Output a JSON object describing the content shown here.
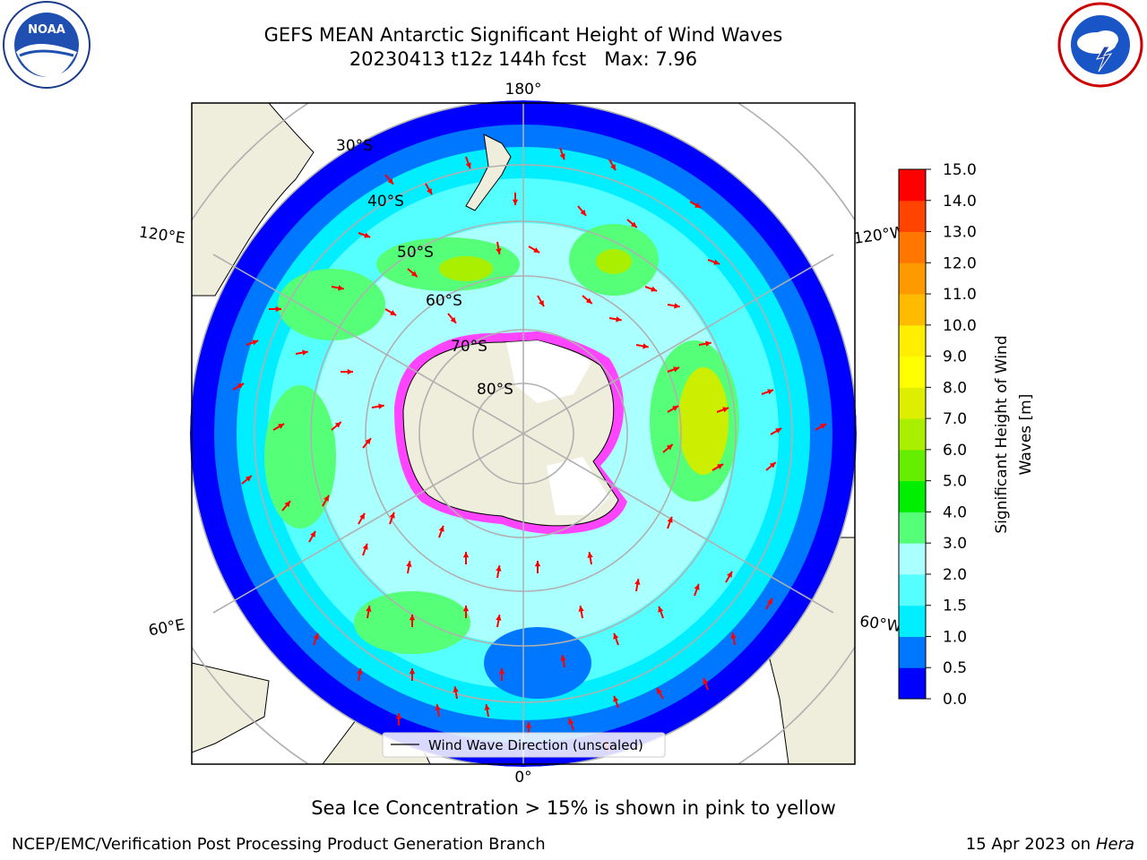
{
  "title": {
    "line1": "GEFS MEAN Antarctic Significant Height of Wind Waves",
    "line2": "20230413 t12z 144h fcst   Max: 7.96"
  },
  "logos": {
    "left": {
      "name": "NOAA",
      "ring_text": "NATIONAL OCEANIC AND ATMOSPHERIC ADMINISTRATION",
      "bottom_text": "U.S. DEPARTMENT OF COMMERCE"
    },
    "right": {
      "ring_text": "NATIONAL WEATHER SERVICE"
    }
  },
  "map": {
    "projection": "south-polar-stereographic",
    "longitude_labels": {
      "top": "180°",
      "bottom": "0°",
      "upper_left": "120°E",
      "lower_left": "60°E",
      "upper_right": "120°W",
      "lower_right": "60°W"
    },
    "latitude_labels": [
      "30°S",
      "40°S",
      "50°S",
      "60°S",
      "70°S",
      "80°S"
    ],
    "legend_label": "Wind Wave Direction (unscaled)",
    "colors": {
      "land": "#efeddc",
      "sea_ice": "#ff44ff",
      "arrow": "#ff0000",
      "grid": "#b0b0b0"
    }
  },
  "colorbar": {
    "label": "Significant Height of Wind Waves [m]",
    "label_line1": "Significant Height of Wind",
    "label_line2": "Waves [m]",
    "ticks": [
      "0.0",
      "0.5",
      "1.0",
      "1.5",
      "2.0",
      "3.0",
      "4.0",
      "5.0",
      "6.0",
      "7.0",
      "8.0",
      "9.0",
      "10.0",
      "11.0",
      "12.0",
      "13.0",
      "14.0",
      "15.0"
    ],
    "colors": [
      "#0000ff",
      "#0077ff",
      "#00eeff",
      "#55ffff",
      "#aaffff",
      "#55ff77",
      "#00ee00",
      "#66ee00",
      "#aaee00",
      "#ddee00",
      "#ffff00",
      "#ffee00",
      "#ffbb00",
      "#ff9900",
      "#ff7700",
      "#ff4400",
      "#ff0000"
    ]
  },
  "caption": "Sea Ice Concentration > 15% is shown in pink to yellow",
  "footer": {
    "left": "NCEP/EMC/Verification Post Processing Product Generation Branch",
    "right_prefix": "15 Apr 2023 on ",
    "right_host": "Hera"
  }
}
